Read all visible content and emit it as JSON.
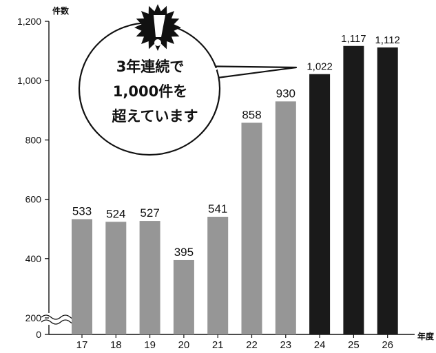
{
  "chart_data": {
    "type": "bar",
    "categories": [
      "17",
      "18",
      "19",
      "20",
      "21",
      "22",
      "23",
      "24",
      "25",
      "26"
    ],
    "values": [
      533,
      524,
      527,
      395,
      541,
      858,
      930,
      1022,
      1117,
      1112
    ],
    "value_labels": [
      "533",
      "524",
      "527",
      "395",
      "541",
      "858",
      "930",
      "1,022",
      "1,117",
      "1,112"
    ],
    "ylabel": "件数",
    "xlabel": "年度",
    "yticks": [
      {
        "value": 0,
        "label": "0"
      },
      {
        "value": 200,
        "label": "200"
      },
      {
        "value": 400,
        "label": "400"
      },
      {
        "value": 600,
        "label": "600"
      },
      {
        "value": 800,
        "label": "800"
      },
      {
        "value": 1000,
        "label": "1,000"
      },
      {
        "value": 1200,
        "label": "1,200"
      }
    ],
    "ylim": [
      0,
      1200
    ],
    "axis_break": "between 0 and 200",
    "grid": false,
    "colors": {
      "earlier_years": "#969696",
      "highlight_years": "#1a1a1a"
    },
    "highlight_from_index": 7,
    "callout": {
      "icon": "exclamation-burst-icon",
      "lines": [
        "3年連続で",
        "1,000件を",
        "超えています"
      ]
    }
  }
}
